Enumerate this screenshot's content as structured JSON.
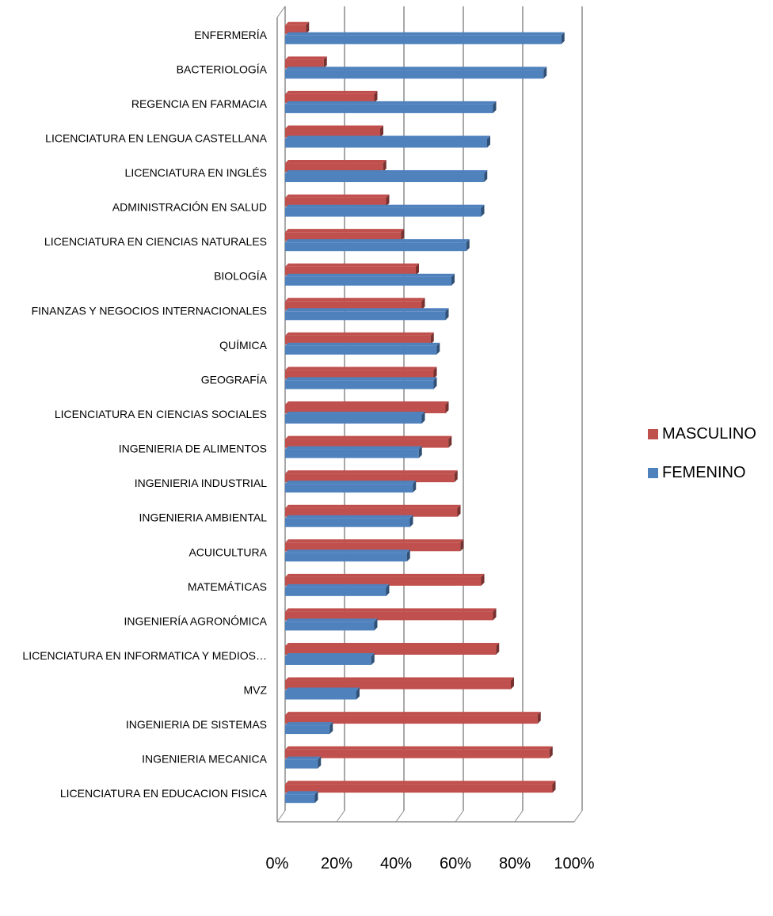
{
  "chart_data": {
    "type": "bar",
    "orientation": "horizontal",
    "title": "",
    "xlabel": "",
    "ylabel": "",
    "xlim": [
      0,
      1
    ],
    "x_ticks": [
      "0%",
      "20%",
      "40%",
      "60%",
      "80%",
      "100%"
    ],
    "grid": true,
    "legend_position": "right",
    "categories": [
      "ENFERMERÍA",
      "BACTERIOLOGÍA",
      "REGENCIA EN FARMACIA",
      "LICENCIATURA EN LENGUA CASTELLANA",
      "LICENCIATURA EN INGLÉS",
      "ADMINISTRACIÓN EN SALUD",
      "LICENCIATURA EN CIENCIAS NATURALES",
      "BIOLOGÍA",
      "FINANZAS Y NEGOCIOS INTERNACIONALES",
      "QUÍMICA",
      "GEOGRAFÍA",
      "LICENCIATURA EN CIENCIAS SOCIALES",
      "INGENIERIA DE ALIMENTOS",
      "INGENIERIA INDUSTRIAL",
      "INGENIERIA AMBIENTAL",
      "ACUICULTURA",
      "MATEMÁTICAS",
      "INGENIERÍA AGRONÓMICA",
      "LICENCIATURA EN INFORMATICA Y MEDIOS…",
      "MVZ",
      "INGENIERIA DE SISTEMAS",
      "INGENIERIA MECANICA",
      "LICENCIATURA EN EDUCACION FISICA"
    ],
    "series": [
      {
        "name": "MASCULINO",
        "color": "#c0504d",
        "values": [
          0.07,
          0.13,
          0.3,
          0.32,
          0.33,
          0.34,
          0.39,
          0.44,
          0.46,
          0.49,
          0.5,
          0.54,
          0.55,
          0.57,
          0.58,
          0.59,
          0.66,
          0.7,
          0.71,
          0.76,
          0.85,
          0.89,
          0.9
        ]
      },
      {
        "name": "FEMENINO",
        "color": "#4f81bd",
        "values": [
          0.93,
          0.87,
          0.7,
          0.68,
          0.67,
          0.66,
          0.61,
          0.56,
          0.54,
          0.51,
          0.5,
          0.46,
          0.45,
          0.43,
          0.42,
          0.41,
          0.34,
          0.3,
          0.29,
          0.24,
          0.15,
          0.11,
          0.1
        ]
      }
    ]
  }
}
